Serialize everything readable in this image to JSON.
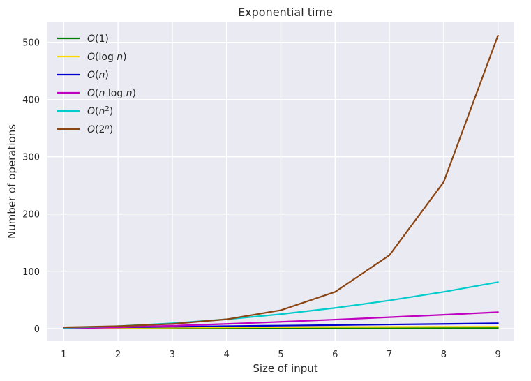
{
  "chart_data": {
    "type": "line",
    "title": "Exponential time",
    "xlabel": "Size of input",
    "ylabel": "Number of operations",
    "x": [
      1,
      2,
      3,
      4,
      5,
      6,
      7,
      8,
      9
    ],
    "xlim": [
      0.7,
      9.3
    ],
    "ylim": [
      -21,
      535
    ],
    "xticks": [
      1,
      2,
      3,
      4,
      5,
      6,
      7,
      8,
      9
    ],
    "yticks": [
      0,
      100,
      200,
      300,
      400,
      500
    ],
    "grid": true,
    "legend_position": "top-left",
    "series": [
      {
        "name": "O(1)",
        "color": "#008000",
        "values": [
          1,
          1,
          1,
          1,
          1,
          1,
          1,
          1,
          1
        ]
      },
      {
        "name": "O(log n)",
        "color": "#ffd700",
        "values": [
          0,
          1,
          1.58,
          2,
          2.32,
          2.58,
          2.81,
          3,
          3.17
        ]
      },
      {
        "name": "O(n)",
        "color": "#0000cd",
        "values": [
          1,
          2,
          3,
          4,
          5,
          6,
          7,
          8,
          9
        ]
      },
      {
        "name": "O(n log n)",
        "color": "#c000c0",
        "values": [
          0,
          2,
          4.75,
          8,
          11.61,
          15.51,
          19.65,
          24,
          28.53
        ]
      },
      {
        "name": "O(n^2)",
        "color": "#00cccc",
        "values": [
          1,
          4,
          9,
          16,
          25,
          36,
          49,
          64,
          81
        ]
      },
      {
        "name": "O(2^n)",
        "color": "#8b4513",
        "values": [
          2,
          4,
          8,
          16,
          32,
          64,
          128,
          256,
          512
        ]
      }
    ]
  }
}
